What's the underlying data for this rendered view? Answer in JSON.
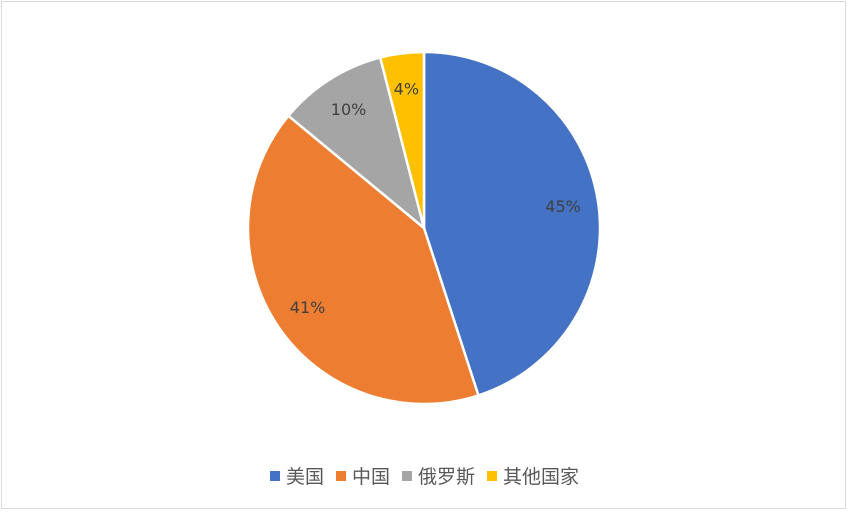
{
  "chart_data": {
    "type": "pie",
    "title": "",
    "start": "top",
    "direction": "clockwise",
    "categories": [
      "美国",
      "中国",
      "俄罗斯",
      "其他国家"
    ],
    "values": [
      45,
      41,
      10,
      4
    ],
    "labels": [
      "45%",
      "41%",
      "10%",
      "4%"
    ],
    "colors": [
      "#4472c4",
      "#ed7d31",
      "#a5a5a5",
      "#ffc000"
    ],
    "legend": "bottom"
  }
}
